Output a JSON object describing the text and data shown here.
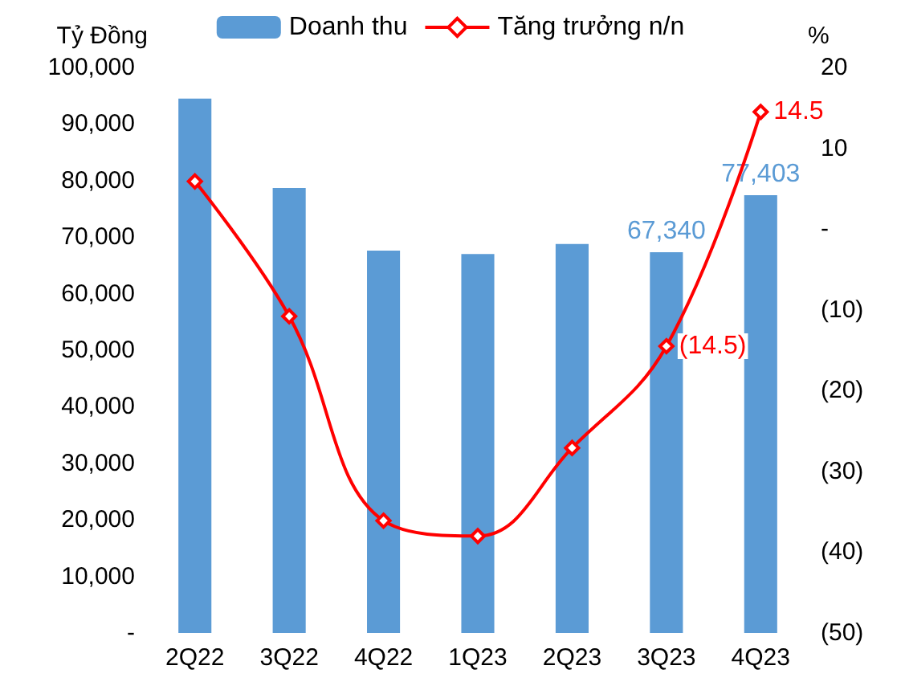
{
  "chart_data": {
    "type": "bar",
    "ylabel": "Tỷ Đồng",
    "y2label": "%",
    "categories": [
      "2Q22",
      "3Q22",
      "4Q22",
      "1Q23",
      "2Q23",
      "3Q23",
      "4Q23"
    ],
    "series": [
      {
        "name": "Doanh thu",
        "color": "#5b9bd5",
        "values": [
          94500,
          78700,
          67600,
          67000,
          68800,
          67340,
          77403
        ],
        "value_labels": [
          null,
          null,
          null,
          null,
          null,
          "67,340",
          "77,403"
        ]
      },
      {
        "name": "Tăng trưởng n/n",
        "type": "line",
        "axis": "y2",
        "color": "#ff0000",
        "marker": "diamond",
        "values": [
          5.9,
          -10.8,
          -36.1,
          -38.0,
          -27.1,
          -14.5,
          14.5
        ],
        "value_labels": [
          null,
          null,
          null,
          null,
          null,
          "(14.5)",
          "14.5"
        ]
      }
    ],
    "ylim": [
      0,
      100000
    ],
    "yticks": [
      {
        "value": 0,
        "label": "-"
      },
      {
        "value": 10000,
        "label": "10,000"
      },
      {
        "value": 20000,
        "label": "20,000"
      },
      {
        "value": 30000,
        "label": "30,000"
      },
      {
        "value": 40000,
        "label": "40,000"
      },
      {
        "value": 50000,
        "label": "50,000"
      },
      {
        "value": 60000,
        "label": "60,000"
      },
      {
        "value": 70000,
        "label": "70,000"
      },
      {
        "value": 80000,
        "label": "80,000"
      },
      {
        "value": 90000,
        "label": "90,000"
      },
      {
        "value": 100000,
        "label": "100,000"
      }
    ],
    "y2lim": [
      -50,
      20
    ],
    "y2ticks": [
      {
        "value": -50,
        "label": "(50)"
      },
      {
        "value": -40,
        "label": "(40)"
      },
      {
        "value": -30,
        "label": "(30)"
      },
      {
        "value": -20,
        "label": "(20)"
      },
      {
        "value": -10,
        "label": "(10)"
      },
      {
        "value": 0,
        "label": "-"
      },
      10,
      20
    ],
    "grid": false,
    "legend": "top"
  }
}
